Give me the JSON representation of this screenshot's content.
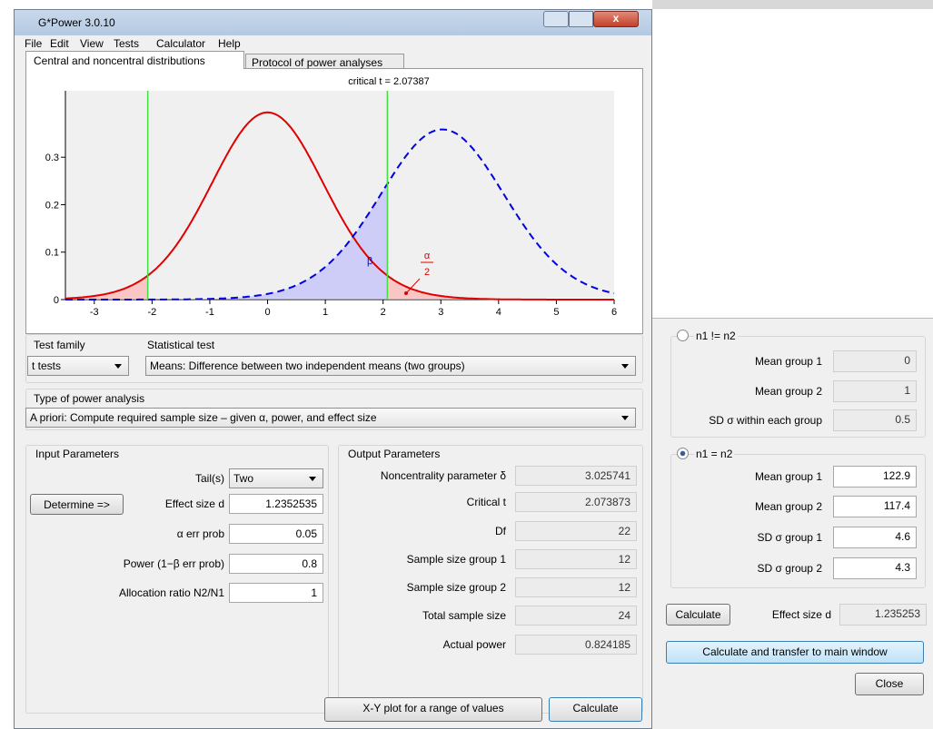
{
  "window": {
    "title": "G*Power 3.0.10"
  },
  "menu": [
    "File",
    "Edit",
    "View",
    "Tests",
    "Calculator",
    "Help"
  ],
  "tabs": [
    "Central and noncentral distributions",
    "Protocol of power analyses"
  ],
  "plot": {
    "critical_label": "critical t = 2.07387",
    "xlim": [
      -3.5,
      6
    ],
    "ylim": [
      0,
      0.44
    ],
    "xticks": [
      -3,
      -2,
      -1,
      0,
      1,
      2,
      3,
      4,
      5,
      6
    ],
    "yticks": [
      0,
      0.1,
      0.2,
      0.3
    ],
    "beta": "β",
    "alpha_num": "α",
    "alpha_den": "2"
  },
  "test_family": {
    "label": "Test family",
    "value": "t tests"
  },
  "statistical_test": {
    "label": "Statistical test",
    "value": "Means: Difference between two independent means (two groups)"
  },
  "power_analysis": {
    "label": "Type of power analysis",
    "value": "A priori: Compute required sample size – given α, power, and effect size"
  },
  "input": {
    "title": "Input Parameters",
    "determine": "Determine =>",
    "rows": [
      [
        "Tail(s)",
        "Two"
      ],
      [
        "Effect size d",
        "1.2352535"
      ],
      [
        "α err prob",
        "0.05"
      ],
      [
        "Power (1−β err prob)",
        "0.8"
      ],
      [
        "Allocation ratio N2/N1",
        "1"
      ]
    ]
  },
  "output": {
    "title": "Output Parameters",
    "rows": [
      [
        "Noncentrality parameter δ",
        "3.025741"
      ],
      [
        "Critical t",
        "2.073873"
      ],
      [
        "Df",
        "22"
      ],
      [
        "Sample size group 1",
        "12"
      ],
      [
        "Sample size group 2",
        "12"
      ],
      [
        "Total sample size",
        "24"
      ],
      [
        "Actual power",
        "0.824185"
      ]
    ]
  },
  "buttons": [
    "X-Y plot for a range of values",
    "Calculate"
  ],
  "effect_dialog": {
    "option1": {
      "label": "n1 != n2",
      "rows": [
        [
          "Mean group 1",
          "0"
        ],
        [
          "Mean group 2",
          "1"
        ],
        [
          "SD σ within each group",
          "0.5"
        ]
      ]
    },
    "option2": {
      "label": "n1 = n2",
      "rows": [
        [
          "Mean group 1",
          "122.9"
        ],
        [
          "Mean group 2",
          "117.4"
        ],
        [
          "SD σ group 1",
          "4.6"
        ],
        [
          "SD σ group 2",
          "4.3"
        ]
      ]
    },
    "calculate": "Calculate",
    "effect_label": "Effect size d",
    "effect_value": "1.235253",
    "transfer": "Calculate and transfer to main window",
    "close": "Close"
  }
}
